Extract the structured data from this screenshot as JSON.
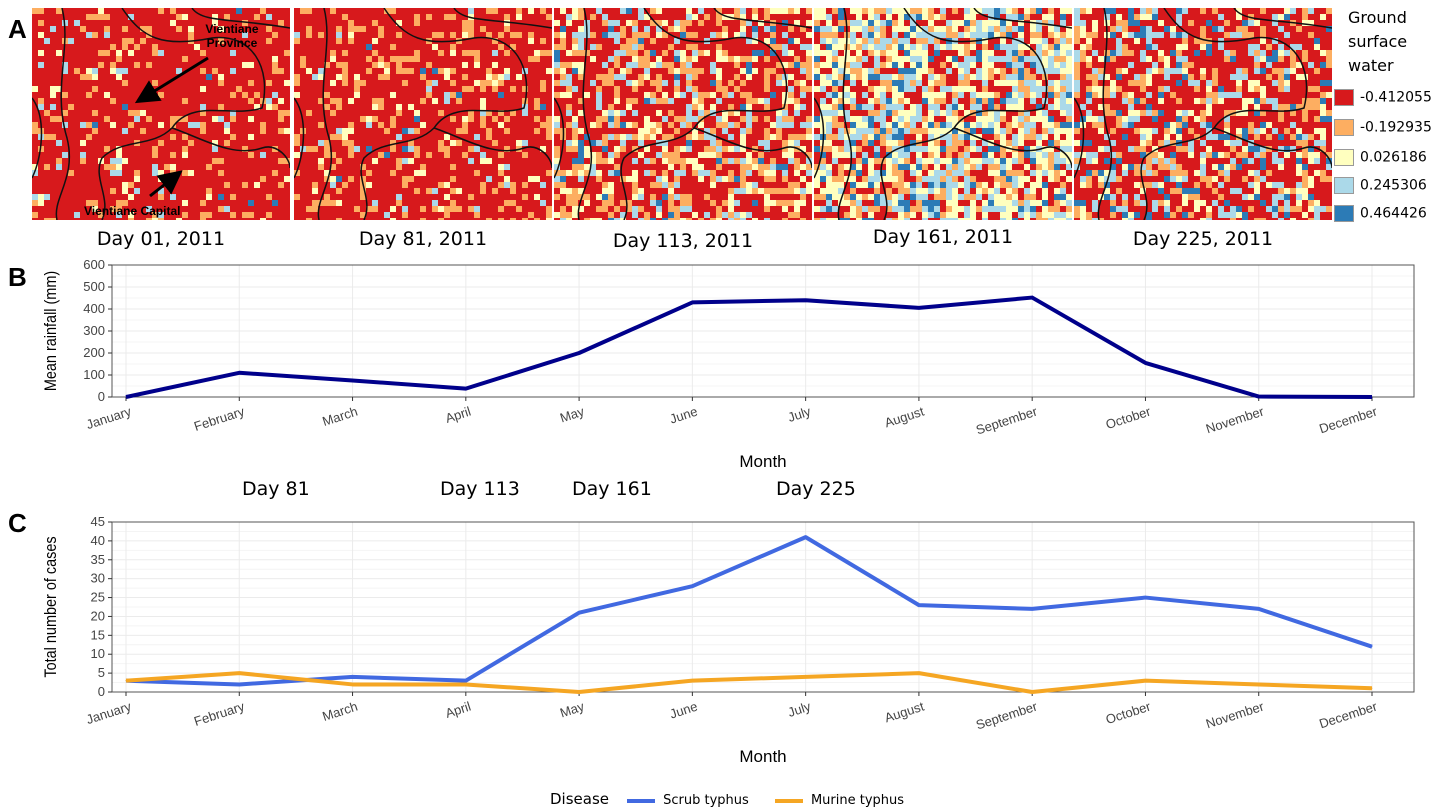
{
  "panel_letters": {
    "a": "A",
    "b": "B",
    "c": "C"
  },
  "maps": [
    {
      "caption": "Day 01, 2011",
      "annot1": "Vientiane Province",
      "annot2": "Vientiane Capital"
    },
    {
      "caption": "Day 81, 2011"
    },
    {
      "caption": "Day 113, 2011"
    },
    {
      "caption": "Day 161, 2011"
    },
    {
      "caption": "Day 225, 2011"
    }
  ],
  "map_legend": {
    "title_lines": [
      "Ground",
      "surface",
      "water"
    ],
    "entries": [
      {
        "label": "-0.412055",
        "color": "#d7191c"
      },
      {
        "label": "-0.192935",
        "color": "#fdae61"
      },
      {
        "label": "0.026186",
        "color": "#ffffbf"
      },
      {
        "label": "0.245306",
        "color": "#abd9e9"
      },
      {
        "label": "0.464426",
        "color": "#2c7bb6"
      }
    ]
  },
  "day_labels": [
    "Day 81",
    "Day 113",
    "Day 161",
    "Day 225"
  ],
  "chart_data": [
    {
      "type": "line",
      "categories": [
        "January",
        "February",
        "March",
        "April",
        "May",
        "June",
        "July",
        "August",
        "September",
        "October",
        "November",
        "December"
      ],
      "series": [
        {
          "values": [
            0,
            110,
            75,
            38,
            200,
            430,
            440,
            405,
            452,
            155,
            2,
            0
          ],
          "color": "#00008b"
        }
      ],
      "xlabel": "Month",
      "ylabel": "Mean rainfall (mm)",
      "ylim": [
        0,
        600
      ],
      "yticks": [
        0,
        100,
        200,
        300,
        400,
        500,
        600
      ],
      "grid": true
    },
    {
      "type": "line",
      "categories": [
        "January",
        "February",
        "March",
        "April",
        "May",
        "June",
        "July",
        "August",
        "September",
        "October",
        "November",
        "December"
      ],
      "series": [
        {
          "name": "Scrub typhus",
          "values": [
            3,
            2,
            4,
            3,
            21,
            28,
            41,
            23,
            22,
            25,
            22,
            12
          ],
          "color": "#4169e1"
        },
        {
          "name": "Murine typhus",
          "values": [
            3,
            5,
            2,
            2,
            0,
            3,
            4,
            5,
            0,
            3,
            2,
            1
          ],
          "color": "#f5a623"
        }
      ],
      "xlabel": "Month",
      "ylabel": "Total number of cases",
      "ylim": [
        0,
        45
      ],
      "yticks": [
        0,
        5,
        10,
        15,
        20,
        25,
        30,
        35,
        40,
        45
      ],
      "grid": true,
      "legend_title": "Disease",
      "legend_position": "bottom"
    }
  ]
}
